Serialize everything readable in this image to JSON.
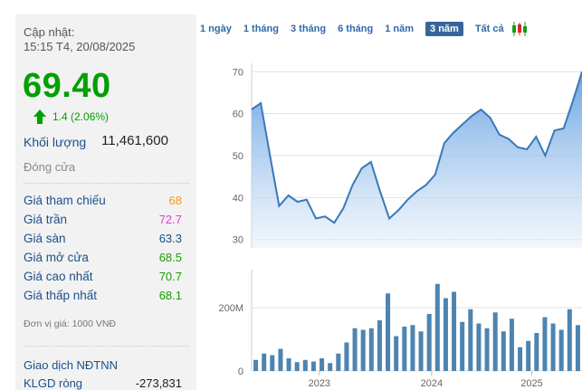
{
  "sidebar": {
    "update_label": "Cập nhật:",
    "update_time": "15:15 T4, 20/08/2025",
    "price": "69.40",
    "change": "1.4 (2.06%)",
    "volume_label": "Khối lượng",
    "volume_value": "11,461,600",
    "status": "Đóng cửa",
    "stats": [
      {
        "label": "Giá tham chiếu",
        "value": "68",
        "color": "#f39c12"
      },
      {
        "label": "Giá trần",
        "value": "72.7",
        "color": "#e23fc9"
      },
      {
        "label": "Giá sàn",
        "value": "63.3",
        "color": "#1d4f8a"
      },
      {
        "label": "Giá mở cửa",
        "value": "68.5",
        "color": "#17a000"
      },
      {
        "label": "Giá cao nhất",
        "value": "70.7",
        "color": "#17a000"
      },
      {
        "label": "Giá thấp nhất",
        "value": "68.1",
        "color": "#17a000"
      }
    ],
    "unit_note": "Đơn vị giá: 1000 VNĐ",
    "foreign_title": "Giao dịch NĐTNN",
    "foreign_net_label": "KLGD ròng",
    "foreign_net_value": "-273,831"
  },
  "tabs": [
    "1 ngày",
    "1 tháng",
    "3 tháng",
    "6 tháng",
    "1 năm",
    "3 năm",
    "Tất cả"
  ],
  "active_tab": "3 năm",
  "colors": {
    "up": "#00a000",
    "accent": "#366698",
    "line": "#3a78b8",
    "bar": "#4d84b0"
  },
  "chart_data": {
    "type": "line",
    "x_labels": [
      "2023",
      "2024",
      "2025"
    ],
    "y_ticks": [
      "70",
      "60",
      "50",
      "40",
      "30"
    ],
    "ylim": [
      28,
      72
    ],
    "price": [
      61,
      62.5,
      50,
      38,
      40.5,
      39,
      39.5,
      35,
      35.5,
      34,
      37.5,
      43,
      47,
      48.5,
      41.5,
      35,
      37,
      39.5,
      41.5,
      43,
      45.5,
      53,
      55.5,
      57.5,
      59.5,
      61,
      59,
      55,
      54,
      52,
      51.5,
      54.5,
      50,
      56,
      56.5,
      63,
      70
    ],
    "volume_ticks": [
      "200M",
      "0"
    ],
    "volume_ylim": [
      0,
      320
    ],
    "volume": [
      35,
      55,
      50,
      70,
      40,
      28,
      35,
      30,
      40,
      25,
      55,
      90,
      135,
      130,
      135,
      160,
      245,
      110,
      140,
      145,
      125,
      180,
      275,
      230,
      250,
      155,
      195,
      150,
      135,
      185,
      125,
      165,
      75,
      95,
      120,
      170,
      150,
      130,
      195,
      145
    ]
  }
}
